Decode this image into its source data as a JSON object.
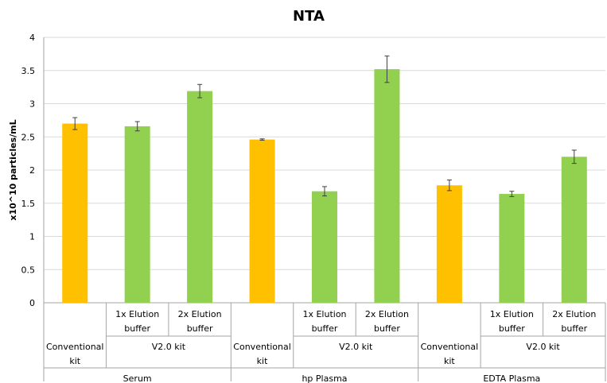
{
  "chart_data": {
    "type": "bar",
    "title": "NTA",
    "ylabel": "x10^10 particles/mL",
    "xlabel": "",
    "ylim": [
      0,
      4
    ],
    "yticks": [
      "0",
      "0.5",
      "1",
      "1.5",
      "2",
      "2.5",
      "3",
      "3.5",
      "4"
    ],
    "grid": true,
    "legend": "none",
    "colors": {
      "conventional": "#ffc000",
      "v2": "#92d050"
    },
    "groups": [
      {
        "label": "Serum",
        "subgroups": [
          {
            "label_lines": [
              "Conventional",
              "kit"
            ],
            "bars": [
              {
                "label_lines": [],
                "value": 2.7,
                "error": 0.09,
                "kind": "conventional"
              }
            ]
          },
          {
            "label_lines": [
              "V2.0 kit"
            ],
            "bars": [
              {
                "label_lines": [
                  "1x Elution",
                  "buffer"
                ],
                "value": 2.66,
                "error": 0.07,
                "kind": "v2"
              },
              {
                "label_lines": [
                  "2x Elution",
                  "buffer"
                ],
                "value": 3.19,
                "error": 0.1,
                "kind": "v2"
              }
            ]
          }
        ]
      },
      {
        "label": "hp Plasma",
        "subgroups": [
          {
            "label_lines": [
              "Conventional",
              "kit"
            ],
            "bars": [
              {
                "label_lines": [],
                "value": 2.46,
                "error": 0.01,
                "kind": "conventional"
              }
            ]
          },
          {
            "label_lines": [
              "V2.0 kit"
            ],
            "bars": [
              {
                "label_lines": [
                  "1x Elution",
                  "buffer"
                ],
                "value": 1.68,
                "error": 0.07,
                "kind": "v2"
              },
              {
                "label_lines": [
                  "2x Elution",
                  "buffer"
                ],
                "value": 3.52,
                "error": 0.2,
                "kind": "v2"
              }
            ]
          }
        ]
      },
      {
        "label": "EDTA Plasma",
        "subgroups": [
          {
            "label_lines": [
              "Conventional",
              "kit"
            ],
            "bars": [
              {
                "label_lines": [],
                "value": 1.77,
                "error": 0.08,
                "kind": "conventional"
              }
            ]
          },
          {
            "label_lines": [
              "V2.0 kit"
            ],
            "bars": [
              {
                "label_lines": [
                  "1x Elution",
                  "buffer"
                ],
                "value": 1.64,
                "error": 0.04,
                "kind": "v2"
              },
              {
                "label_lines": [
                  "2x Elution",
                  "buffer"
                ],
                "value": 2.2,
                "error": 0.1,
                "kind": "v2"
              }
            ]
          }
        ]
      }
    ]
  }
}
